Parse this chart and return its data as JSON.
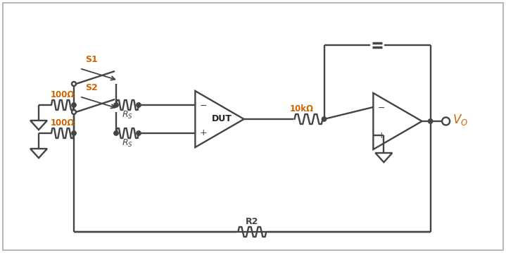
{
  "background_color": "#ffffff",
  "border_color": "#aaaaaa",
  "line_color": "#444444",
  "label_color": "#cc6600",
  "black_color": "#222222",
  "figsize": [
    7.19,
    3.59
  ],
  "dpi": 100,
  "dut_label": "DUT",
  "r1_label": "100Ω",
  "r2_label": "100Ω",
  "rs1_label": "R_S",
  "rs2_label": "R_S",
  "s1_label": "S1",
  "s2_label": "S2",
  "r3_label": "10kΩ",
  "r4_label": "R2",
  "vo_label": "V_O"
}
